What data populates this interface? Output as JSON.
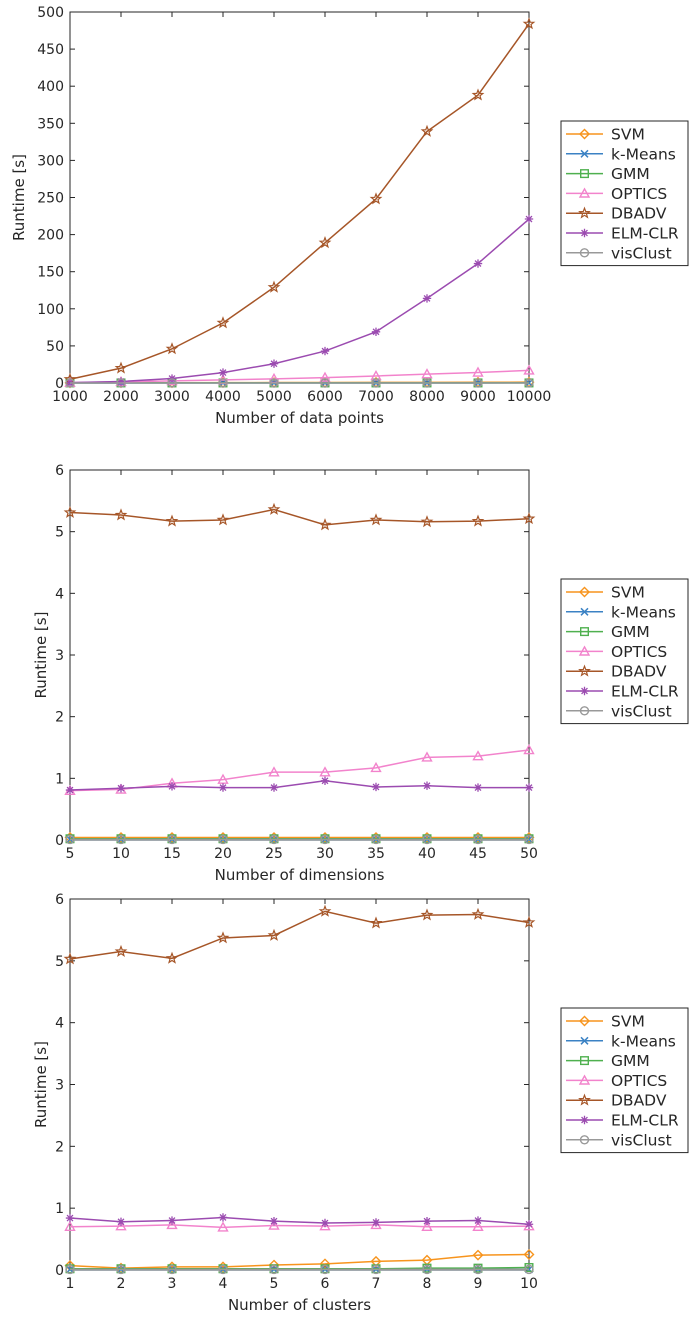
{
  "colors": {
    "SVM": "#f7941d",
    "k-Means": "#3b82c4",
    "GMM": "#4fb04f",
    "OPTICS": "#f283cc",
    "DBADV": "#a65628",
    "ELM-CLR": "#9b4bb0",
    "visClust": "#999999"
  },
  "markers": {
    "SVM": "diamond",
    "k-Means": "x",
    "GMM": "square",
    "OPTICS": "triangle",
    "DBADV": "star",
    "ELM-CLR": "asterisk",
    "visClust": "circle"
  },
  "chart_data": [
    {
      "type": "line",
      "xlabel": "Number of data points",
      "ylabel": "Runtime [s]",
      "xlim": [
        1000,
        10000
      ],
      "ylim": [
        0,
        500
      ],
      "xticks": [
        1000,
        2000,
        3000,
        4000,
        5000,
        6000,
        7000,
        8000,
        9000,
        10000
      ],
      "yticks": [
        0,
        50,
        100,
        150,
        200,
        250,
        300,
        350,
        400,
        450,
        500
      ],
      "x": [
        1000,
        2000,
        3000,
        4000,
        5000,
        6000,
        7000,
        8000,
        9000,
        10000
      ],
      "legend": [
        "SVM",
        "k-Means",
        "GMM",
        "OPTICS",
        "DBADV",
        "ELM-CLR",
        "visClust"
      ],
      "legend_position": "outside-right",
      "series": [
        {
          "name": "SVM",
          "values": [
            0.2,
            0.3,
            0.4,
            0.5,
            0.6,
            0.7,
            0.8,
            0.9,
            1.0,
            1.1
          ]
        },
        {
          "name": "k-Means",
          "values": [
            0.05,
            0.05,
            0.05,
            0.06,
            0.06,
            0.07,
            0.07,
            0.08,
            0.08,
            0.09
          ]
        },
        {
          "name": "GMM",
          "values": [
            0.1,
            0.1,
            0.1,
            0.1,
            0.1,
            0.1,
            0.1,
            0.1,
            0.1,
            0.1
          ]
        },
        {
          "name": "OPTICS",
          "values": [
            0.5,
            1.5,
            2.8,
            4.2,
            5.6,
            7.3,
            9.5,
            12.0,
            14.2,
            17.0
          ]
        },
        {
          "name": "DBADV",
          "values": [
            5,
            20,
            46,
            81,
            129,
            189,
            248,
            339,
            388,
            484
          ]
        },
        {
          "name": "ELM-CLR",
          "values": [
            0.5,
            2,
            6,
            14,
            26,
            43,
            69,
            114,
            161,
            221
          ]
        },
        {
          "name": "visClust",
          "values": [
            0.05,
            0.05,
            0.05,
            0.05,
            0.05,
            0.05,
            0.05,
            0.05,
            0.05,
            0.05
          ]
        }
      ]
    },
    {
      "type": "line",
      "xlabel": "Number of dimensions",
      "ylabel": "Runtime [s]",
      "xlim": [
        5,
        50
      ],
      "ylim": [
        0,
        6
      ],
      "xticks": [
        5,
        10,
        15,
        20,
        25,
        30,
        35,
        40,
        45,
        50
      ],
      "yticks": [
        0,
        1,
        2,
        3,
        4,
        5,
        6
      ],
      "x": [
        5,
        10,
        15,
        20,
        25,
        30,
        35,
        40,
        45,
        50
      ],
      "legend": [
        "SVM",
        "k-Means",
        "GMM",
        "OPTICS",
        "DBADV",
        "ELM-CLR",
        "visClust"
      ],
      "legend_position": "outside-right",
      "series": [
        {
          "name": "SVM",
          "values": [
            0.04,
            0.04,
            0.04,
            0.04,
            0.04,
            0.04,
            0.04,
            0.04,
            0.04,
            0.04
          ]
        },
        {
          "name": "k-Means",
          "values": [
            0.01,
            0.01,
            0.01,
            0.01,
            0.01,
            0.01,
            0.01,
            0.01,
            0.01,
            0.01
          ]
        },
        {
          "name": "GMM",
          "values": [
            0.02,
            0.02,
            0.02,
            0.02,
            0.02,
            0.02,
            0.02,
            0.02,
            0.02,
            0.02
          ]
        },
        {
          "name": "OPTICS",
          "values": [
            0.8,
            0.82,
            0.92,
            0.98,
            1.1,
            1.1,
            1.17,
            1.34,
            1.36,
            1.46
          ]
        },
        {
          "name": "DBADV",
          "values": [
            5.31,
            5.27,
            5.17,
            5.19,
            5.36,
            5.11,
            5.19,
            5.16,
            5.17,
            5.21
          ]
        },
        {
          "name": "ELM-CLR",
          "values": [
            0.81,
            0.84,
            0.87,
            0.85,
            0.85,
            0.96,
            0.86,
            0.88,
            0.85,
            0.85
          ]
        },
        {
          "name": "visClust",
          "values": [
            0.01,
            0.01,
            0.01,
            0.01,
            0.01,
            0.01,
            0.01,
            0.01,
            0.01,
            0.01
          ]
        }
      ]
    },
    {
      "type": "line",
      "xlabel": "Number of clusters",
      "ylabel": "Runtime [s]",
      "xlim": [
        1,
        10
      ],
      "ylim": [
        0,
        6
      ],
      "xticks": [
        1,
        2,
        3,
        4,
        5,
        6,
        7,
        8,
        9,
        10
      ],
      "yticks": [
        0,
        1,
        2,
        3,
        4,
        5,
        6
      ],
      "x": [
        1,
        2,
        3,
        4,
        5,
        6,
        7,
        8,
        9,
        10
      ],
      "legend": [
        "SVM",
        "k-Means",
        "GMM",
        "OPTICS",
        "DBADV",
        "ELM-CLR",
        "visClust"
      ],
      "legend_position": "outside-right",
      "series": [
        {
          "name": "SVM",
          "values": [
            0.07,
            0.03,
            0.05,
            0.05,
            0.08,
            0.1,
            0.14,
            0.16,
            0.24,
            0.25
          ]
        },
        {
          "name": "k-Means",
          "values": [
            0.01,
            0.01,
            0.01,
            0.01,
            0.01,
            0.01,
            0.01,
            0.01,
            0.01,
            0.01
          ]
        },
        {
          "name": "GMM",
          "values": [
            0.02,
            0.02,
            0.02,
            0.02,
            0.02,
            0.02,
            0.02,
            0.03,
            0.03,
            0.04
          ]
        },
        {
          "name": "OPTICS",
          "values": [
            0.7,
            0.71,
            0.73,
            0.69,
            0.72,
            0.71,
            0.73,
            0.7,
            0.7,
            0.71
          ]
        },
        {
          "name": "DBADV",
          "values": [
            5.03,
            5.15,
            5.04,
            5.37,
            5.41,
            5.8,
            5.61,
            5.74,
            5.75,
            5.62
          ]
        },
        {
          "name": "ELM-CLR",
          "values": [
            0.84,
            0.78,
            0.8,
            0.85,
            0.79,
            0.76,
            0.77,
            0.79,
            0.8,
            0.74
          ]
        },
        {
          "name": "visClust",
          "values": [
            0.01,
            0.01,
            0.01,
            0.01,
            0.01,
            0.01,
            0.01,
            0.01,
            0.01,
            0.01
          ]
        }
      ]
    }
  ]
}
